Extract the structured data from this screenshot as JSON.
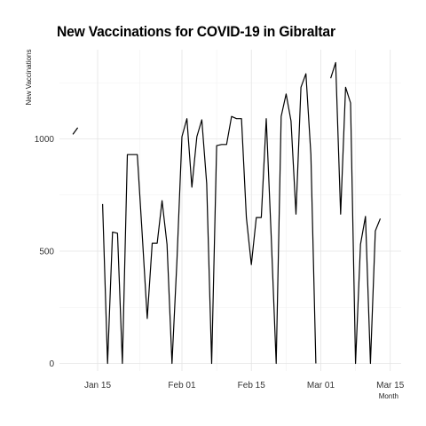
{
  "chart_data": {
    "type": "line",
    "title": "New Vaccinations for COVID-19 in Gibraltar",
    "xlabel": "Month",
    "ylabel": "New Vaccinations",
    "x_ticks": [
      "Jan 15",
      "Feb 01",
      "Feb 15",
      "Mar 01",
      "Mar 15"
    ],
    "y_ticks": [
      0,
      500,
      1000
    ],
    "ylim": [
      0,
      1300
    ],
    "grid": true,
    "series": [
      {
        "points": [
          [
            "2021-01-10",
            1020
          ],
          [
            "2021-01-11",
            1050
          ],
          [
            "2021-01-12",
            null
          ],
          [
            "2021-01-16",
            710
          ],
          [
            "2021-01-17",
            0
          ],
          [
            "2021-01-18",
            585
          ],
          [
            "2021-01-19",
            580
          ],
          [
            "2021-01-20",
            0
          ],
          [
            "2021-01-21",
            930
          ],
          [
            "2021-01-22",
            930
          ],
          [
            "2021-01-23",
            930
          ],
          [
            "2021-01-24",
            570
          ],
          [
            "2021-01-25",
            200
          ],
          [
            "2021-01-26",
            535
          ],
          [
            "2021-01-27",
            535
          ],
          [
            "2021-01-28",
            725
          ],
          [
            "2021-01-29",
            530
          ],
          [
            "2021-01-30",
            0
          ],
          [
            "2021-01-31",
            460
          ],
          [
            "2021-02-01",
            1010
          ],
          [
            "2021-02-02",
            1090
          ],
          [
            "2021-02-03",
            785
          ],
          [
            "2021-02-04",
            1010
          ],
          [
            "2021-02-05",
            1085
          ],
          [
            "2021-02-06",
            800
          ],
          [
            "2021-02-07",
            0
          ],
          [
            "2021-02-08",
            970
          ],
          [
            "2021-02-09",
            975
          ],
          [
            "2021-02-10",
            975
          ],
          [
            "2021-02-11",
            1100
          ],
          [
            "2021-02-12",
            1090
          ],
          [
            "2021-02-13",
            1090
          ],
          [
            "2021-02-14",
            650
          ],
          [
            "2021-02-15",
            440
          ],
          [
            "2021-02-16",
            650
          ],
          [
            "2021-02-17",
            650
          ],
          [
            "2021-02-18",
            1090
          ],
          [
            "2021-02-19",
            565
          ],
          [
            "2021-02-20",
            0
          ],
          [
            "2021-02-21",
            1100
          ],
          [
            "2021-02-22",
            1200
          ],
          [
            "2021-02-23",
            1080
          ],
          [
            "2021-02-24",
            665
          ],
          [
            "2021-02-25",
            1230
          ],
          [
            "2021-02-26",
            1290
          ],
          [
            "2021-02-27",
            930
          ],
          [
            "2021-02-28",
            0
          ],
          [
            "2021-03-01",
            null
          ],
          [
            "2021-03-03",
            1270
          ],
          [
            "2021-03-04",
            1340
          ],
          [
            "2021-03-05",
            665
          ],
          [
            "2021-03-06",
            1230
          ],
          [
            "2021-03-07",
            1160
          ],
          [
            "2021-03-08",
            0
          ],
          [
            "2021-03-09",
            530
          ],
          [
            "2021-03-10",
            655
          ],
          [
            "2021-03-11",
            0
          ],
          [
            "2021-03-12",
            590
          ],
          [
            "2021-03-13",
            645
          ]
        ]
      }
    ]
  }
}
